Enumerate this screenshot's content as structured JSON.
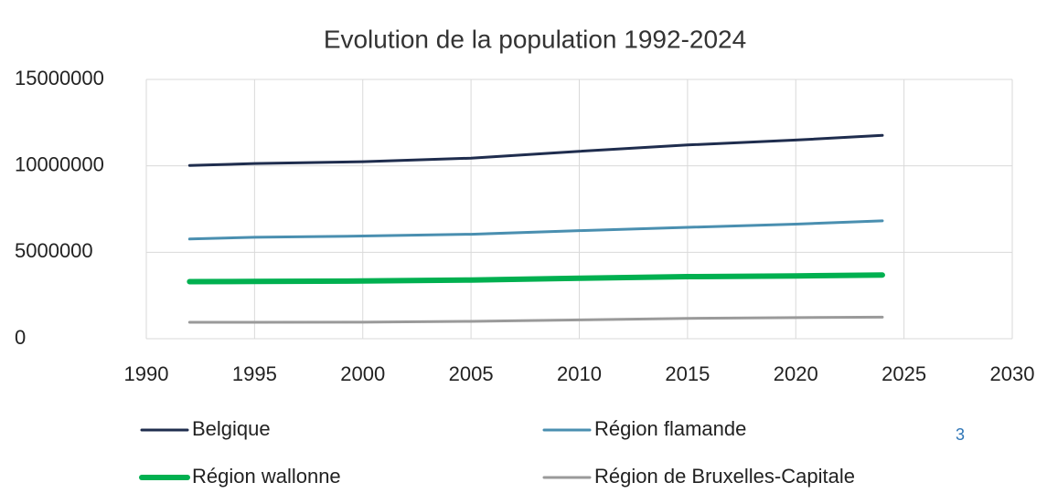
{
  "chart_data": {
    "type": "line",
    "title": "Evolution de la population 1992-2024",
    "x": [
      1992,
      1995,
      2000,
      2005,
      2010,
      2015,
      2020,
      2024
    ],
    "series": [
      {
        "name": "Belgique",
        "color": "#1f2d4e",
        "values": [
          10022000,
          10131000,
          10240000,
          10446000,
          10840000,
          11209000,
          11492000,
          11764000
        ]
      },
      {
        "name": "Région flamande",
        "color": "#4a8fb0",
        "values": [
          5768000,
          5867000,
          5940000,
          6044000,
          6252000,
          6444000,
          6629000,
          6822000
        ]
      },
      {
        "name": "Région wallonne",
        "color": "#00b050",
        "values": [
          3300000,
          3313000,
          3340000,
          3396000,
          3498000,
          3589000,
          3633000,
          3686000
        ]
      },
      {
        "name": "Région de Bruxelles-Capitale",
        "color": "#9a9a9a",
        "values": [
          951000,
          949000,
          959000,
          1006000,
          1089000,
          1175000,
          1219000,
          1249000
        ]
      }
    ],
    "xlim": [
      1990,
      2030
    ],
    "xticks": [
      1990,
      1995,
      2000,
      2005,
      2010,
      2015,
      2020,
      2025,
      2030
    ],
    "ylim": [
      0,
      15000000
    ],
    "yticks": [
      0,
      5000000,
      10000000,
      15000000
    ],
    "grid": true,
    "legend": "bottom",
    "annotation": "3"
  }
}
